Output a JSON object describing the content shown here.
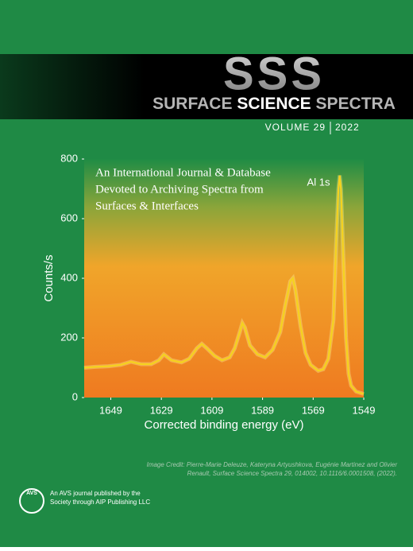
{
  "masthead": {
    "logo": "SSS",
    "title_words": [
      "SURFACE",
      "SCIENCE",
      "SPECTRA"
    ],
    "volume": "VOLUME 29",
    "year": "2022"
  },
  "chart_data": {
    "type": "line",
    "annotation_lines": [
      "An International Journal & Database",
      "Devoted to Archiving Spectra from",
      "Surfaces & Interfaces"
    ],
    "peak_label": "Al 1s",
    "x_label": "Corrected binding energy (eV)",
    "y_label": "Counts/s",
    "x": [
      1659.5,
      1655,
      1650,
      1645,
      1641,
      1637,
      1633,
      1630,
      1628,
      1625,
      1621,
      1618,
      1615,
      1613,
      1611,
      1608,
      1605,
      1602,
      1600,
      1598,
      1597,
      1596,
      1594,
      1591,
      1588,
      1585,
      1582,
      1580,
      1578,
      1577,
      1576,
      1574,
      1572,
      1570,
      1567,
      1565,
      1563,
      1561,
      1560,
      1559,
      1558.5,
      1558,
      1557,
      1556,
      1555,
      1554,
      1552,
      1549
    ],
    "values": [
      100,
      103,
      105,
      110,
      120,
      112,
      112,
      125,
      145,
      125,
      118,
      130,
      165,
      180,
      165,
      140,
      125,
      135,
      165,
      220,
      250,
      235,
      175,
      145,
      135,
      160,
      220,
      310,
      390,
      400,
      360,
      240,
      150,
      110,
      90,
      95,
      130,
      260,
      500,
      700,
      745,
      700,
      450,
      200,
      80,
      40,
      20,
      12
    ],
    "color": "#f5d21e",
    "xlim": [
      1659.5,
      1549
    ],
    "xticks": [
      1649,
      1629,
      1609,
      1589,
      1569,
      1549
    ],
    "ylim": [
      0,
      800
    ],
    "yticks": [
      0,
      200,
      400,
      600,
      800
    ]
  },
  "credit": [
    "Image Credit: Pierre-Marie Deleuze, Kateryna Artyushkova, Eugénie Martinez and Olivier",
    "Renault, Surface Science Spectra 29, 014002, 10.1116/6.0001508, (2022)."
  ],
  "footer": {
    "logo": "AVS",
    "lines": [
      "An AVS journal published by the",
      "Society through AIP Publishing LLC"
    ]
  }
}
